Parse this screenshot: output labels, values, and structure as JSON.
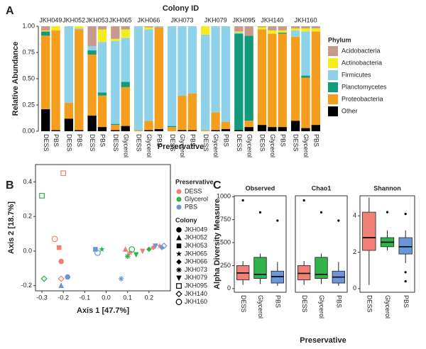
{
  "chart_data": [
    {
      "type": "stacked-bar",
      "panel": "A",
      "title": "Colony ID",
      "xlabel": "Preservative",
      "ylabel": "Relative Abundance",
      "legend_title": "Phylum",
      "groups": [
        {
          "name": "JKH049",
          "categories": [
            "DESS",
            "PBS"
          ]
        },
        {
          "name": "JKH052",
          "categories": [
            "DESS",
            "PBS"
          ]
        },
        {
          "name": "JKH053",
          "categories": [
            "DESS",
            "PBS"
          ]
        },
        {
          "name": "JKH065",
          "categories": [
            "DESS",
            "Glycerol"
          ]
        },
        {
          "name": "JKH066",
          "categories": [
            "DESS",
            "Glycerol",
            "PBS"
          ]
        },
        {
          "name": "JKH073",
          "categories": [
            "DESS",
            "Glycerol",
            "PBS"
          ]
        },
        {
          "name": "JKH079",
          "categories": [
            "DESS",
            "Glycerol",
            "PBS"
          ]
        },
        {
          "name": "JKH095",
          "categories": [
            "DESS",
            "Glycerol"
          ]
        },
        {
          "name": "JKH140",
          "categories": [
            "DESS",
            "Glycerol",
            "PBS"
          ]
        },
        {
          "name": "JKH160",
          "categories": [
            "DESS",
            "Glycerol",
            "PBS"
          ]
        }
      ],
      "ylim": [
        0,
        1
      ],
      "yticks": [
        {
          "value": 0,
          "label": "0.00"
        },
        {
          "value": 0.25,
          "label": "0.25"
        },
        {
          "value": 0.5,
          "label": "0.50"
        },
        {
          "value": 0.75,
          "label": "0.75"
        },
        {
          "value": 1,
          "label": "1.00"
        }
      ],
      "series": [
        {
          "name": "Acidobacteria",
          "color": "#c9998a",
          "values": [
            0.04,
            0,
            0,
            0,
            0.19,
            0.03,
            0.12,
            0.03,
            0,
            0.01,
            0,
            0,
            0,
            0,
            0,
            0,
            0,
            0.05,
            0.09,
            0.01,
            0.04,
            0.04,
            0.02,
            0.02,
            0.02
          ]
        },
        {
          "name": "Actinobacteria",
          "color": "#f5ec1e",
          "values": [
            0.01,
            0.04,
            0,
            0.02,
            0,
            0.12,
            0.02,
            0.08,
            0,
            0.02,
            0,
            0,
            0,
            0,
            0.08,
            0,
            0,
            0.01,
            0,
            0.02,
            0.03,
            0.02,
            0.02,
            0.03,
            0.03
          ]
        },
        {
          "name": "Firmicutes",
          "color": "#8dd2e8",
          "values": [
            0,
            0,
            0.73,
            0.01,
            0.04,
            0.48,
            0.79,
            0.42,
            0.99,
            0.87,
            0.01,
            0.95,
            0.66,
            0.64,
            0.91,
            0.82,
            0.91,
            0.01,
            0,
            0,
            0,
            0,
            0.06,
            0.42,
            0
          ]
        },
        {
          "name": "Planctomycetes",
          "color": "#139a7a",
          "values": [
            0.04,
            0,
            0,
            0,
            0.04,
            0.03,
            0.01,
            0.05,
            0,
            0,
            0,
            0.01,
            0,
            0,
            0,
            0,
            0,
            0.92,
            0.81,
            0,
            0,
            0.01,
            0,
            0.02,
            0
          ]
        },
        {
          "name": "Proteobacteria",
          "color": "#f59d1c",
          "values": [
            0.7,
            0.95,
            0.15,
            0.96,
            0.58,
            0.3,
            0.05,
            0.37,
            0.01,
            0.09,
            0.97,
            0.04,
            0.33,
            0.35,
            0.01,
            0.17,
            0.07,
            0,
            0.06,
            0.91,
            0.89,
            0.89,
            0.8,
            0.48,
            0.89
          ]
        },
        {
          "name": "Other",
          "color": "#000000",
          "values": [
            0.21,
            0.01,
            0.12,
            0.01,
            0.15,
            0.04,
            0.01,
            0.05,
            0,
            0.01,
            0.02,
            0,
            0.01,
            0.01,
            0,
            0.01,
            0.02,
            0.01,
            0.04,
            0.06,
            0.04,
            0.04,
            0.1,
            0.03,
            0.06
          ]
        }
      ]
    },
    {
      "type": "scatter",
      "panel": "B",
      "xlabel": "Axis 1   [47.7%]",
      "ylabel": "Axis 2 [18.7%]",
      "legend_title": "Preservative",
      "shape_legend_title": "Colony",
      "xlim": [
        -0.33,
        0.3
      ],
      "xticks": [
        -0.3,
        -0.2,
        -0.1,
        {
          "value": 0,
          "label": "0.0"
        },
        0.1,
        0.2
      ],
      "ylim": [
        -0.23,
        0.5
      ],
      "yticks": [
        -0.2,
        {
          "value": 0,
          "label": "0.0"
        },
        0.2,
        0.4
      ],
      "shapes": [
        {
          "name": "JKH049",
          "shape": "circle"
        },
        {
          "name": "JKH052",
          "shape": "triangle"
        },
        {
          "name": "JKH053",
          "shape": "square"
        },
        {
          "name": "JKH065",
          "shape": "star"
        },
        {
          "name": "JKH066",
          "shape": "diamond"
        },
        {
          "name": "JKH073",
          "shape": "asterisk"
        },
        {
          "name": "JKH079",
          "shape": "triangle-down"
        },
        {
          "name": "JKH095",
          "shape": "open-square"
        },
        {
          "name": "JKH140",
          "shape": "open-diamond"
        },
        {
          "name": "JKH160",
          "shape": "open-circle"
        }
      ],
      "series": [
        {
          "name": "DESS",
          "color": "#f07f75",
          "x": [
            -0.21,
            0.09,
            -0.22,
            0.25,
            0.22,
            0.11,
            0.17,
            -0.2,
            -0.21,
            -0.24
          ],
          "values": [
            -0.06,
            0.01,
            0.02,
            0.03,
            0.02,
            -0.01,
            0,
            0.45,
            -0.16,
            0.07
          ],
          "colonies": [
            "JKH049",
            "JKH052",
            "JKH053",
            "JKH065",
            "JKH066",
            "JKH073",
            "JKH079",
            "JKH095",
            "JKH140",
            "JKH160"
          ]
        },
        {
          "name": "Glycerol",
          "color": "#2fb34a",
          "x": [
            -0.02,
            0.2,
            0.1,
            0.14,
            -0.3,
            -0.29,
            0.12
          ],
          "values": [
            0.01,
            0.01,
            -0.03,
            -0.02,
            0.32,
            -0.16,
            0.01
          ],
          "colonies": [
            "JKH065",
            "JKH066",
            "JKH073",
            "JKH079",
            "JKH095",
            "JKH140",
            "JKH160"
          ]
        },
        {
          "name": "PBS",
          "color": "#6996d8",
          "x": [
            -0.18,
            -0.21,
            -0.05,
            0.26,
            0.07,
            0.23,
            0.27,
            -0.04
          ],
          "values": [
            -0.15,
            -0.2,
            0.01,
            0.02,
            -0.16,
            0.03,
            0.03,
            -0.01
          ],
          "colonies": [
            "JKH049",
            "JKH052",
            "JKH053",
            "JKH066",
            "JKH073",
            "JKH079",
            "JKH140",
            "JKH160"
          ]
        }
      ]
    },
    {
      "type": "box",
      "panel": "C",
      "xlabel": "Preservative",
      "ylabel": "Alpha Diversity Measure",
      "colors": [
        "#f07f75",
        "#2fb34a",
        "#6996d8"
      ],
      "facets": [
        {
          "title": "Observed",
          "categories": [
            "DESS",
            "Glycerol",
            "PBS"
          ],
          "ylim": [
            -40,
            1010
          ],
          "yticks": [
            0,
            250,
            500,
            750,
            1000
          ],
          "boxes": [
            {
              "min": 40,
              "q1": 95,
              "median": 170,
              "q3": 250,
              "max": 300,
              "outliers": [
                960
              ]
            },
            {
              "min": 50,
              "q1": 110,
              "median": 155,
              "q3": 340,
              "max": 380,
              "outliers": [
                830
              ]
            },
            {
              "min": 30,
              "q1": 60,
              "median": 130,
              "q3": 190,
              "max": 290,
              "outliers": [
                740
              ]
            }
          ]
        },
        {
          "title": "Chao1",
          "categories": [
            "DESS",
            "Glycerol",
            "PBS"
          ],
          "ylim": [
            -40,
            1010
          ],
          "boxes": [
            {
              "min": 40,
              "q1": 95,
              "median": 165,
              "q3": 250,
              "max": 300,
              "outliers": [
                960
              ]
            },
            {
              "min": 50,
              "q1": 110,
              "median": 155,
              "q3": 340,
              "max": 380,
              "outliers": [
                830
              ]
            },
            {
              "min": 30,
              "q1": 60,
              "median": 125,
              "q3": 190,
              "max": 290,
              "outliers": [
                740
              ]
            }
          ]
        },
        {
          "title": "Shannon",
          "categories": [
            "DESS",
            "Glycerol",
            "PBS"
          ],
          "ylim": [
            -0.2,
            5.1
          ],
          "yticks": [
            0,
            2,
            4
          ],
          "boxes": [
            {
              "min": 0.2,
              "q1": 2.1,
              "median": 2.8,
              "q3": 4.2,
              "max": 5.0,
              "outliers": []
            },
            {
              "min": 2.1,
              "q1": 2.3,
              "median": 2.55,
              "q3": 2.8,
              "max": 3.2,
              "outliers": [
                4.2
              ]
            },
            {
              "min": 1.4,
              "q1": 1.9,
              "median": 2.3,
              "q3": 2.8,
              "max": 3.2,
              "outliers": [
                0.4,
                0.9,
                4.1
              ]
            }
          ]
        }
      ]
    }
  ]
}
